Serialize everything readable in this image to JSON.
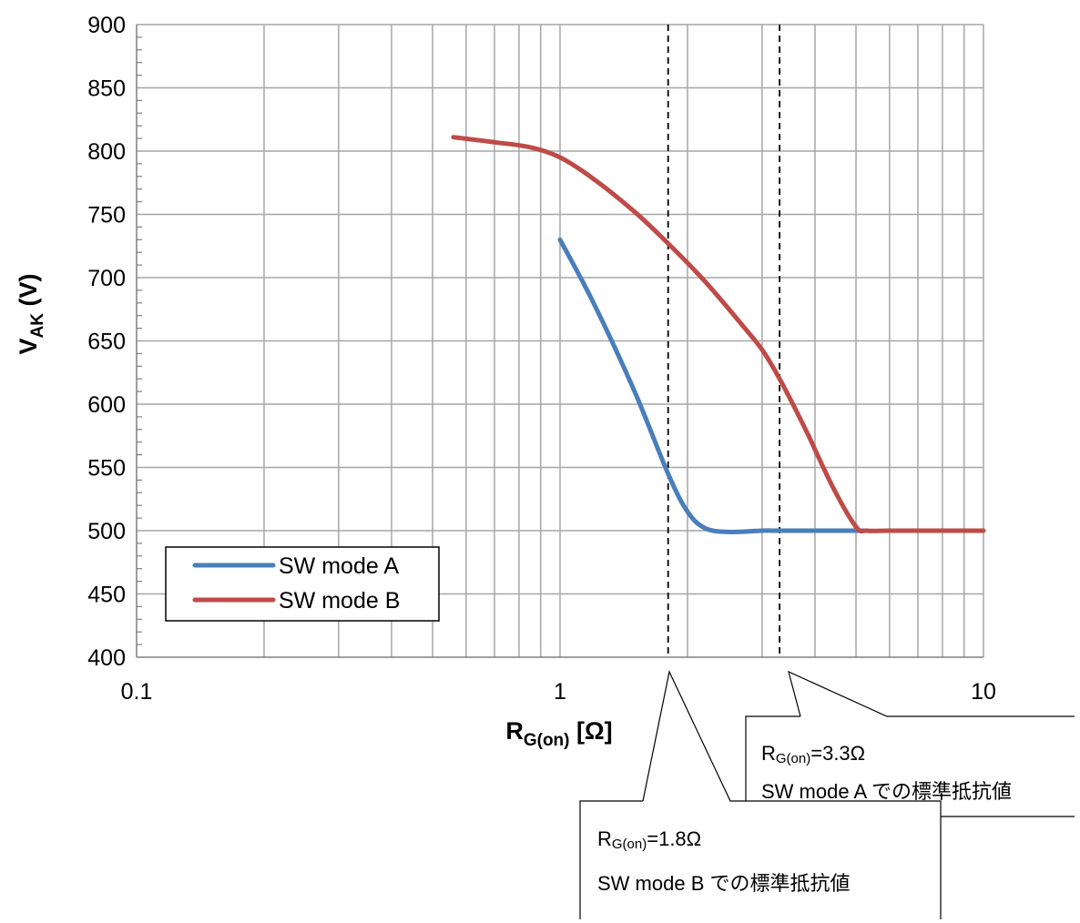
{
  "chart_data": {
    "type": "line",
    "title": "",
    "xlabel": {
      "main": "R",
      "sub": "G(on)",
      "unit": " [Ω]"
    },
    "ylabel": {
      "main": "V",
      "sub": "AK",
      "unit": " (V)"
    },
    "xscale": "log",
    "xlim": [
      0.1,
      10
    ],
    "ylim": [
      400,
      900
    ],
    "x_ticks": [
      "0.1",
      "1",
      "10"
    ],
    "y_ticks": [
      "400",
      "450",
      "500",
      "550",
      "600",
      "650",
      "700",
      "750",
      "800",
      "850",
      "900"
    ],
    "grid": true,
    "legend_position": "bottom-left",
    "series": [
      {
        "name": "SW mode A",
        "color": "#4a7ebb",
        "x": [
          1.0,
          1.2,
          1.5,
          1.8,
          2.0,
          2.2,
          2.5,
          3.0,
          3.3,
          4.0,
          5.0,
          5.3
        ],
        "y": [
          730,
          680,
          610,
          545,
          515,
          502,
          499,
          500,
          500,
          500,
          500,
          500
        ]
      },
      {
        "name": "SW mode B",
        "color": "#be4b48",
        "x": [
          0.56,
          0.7,
          0.85,
          1.0,
          1.2,
          1.5,
          1.8,
          2.2,
          2.7,
          3.0,
          3.3,
          3.8,
          4.4,
          5.0,
          5.3,
          6.0,
          8.0,
          10.0
        ],
        "y": [
          811,
          807,
          803,
          795,
          778,
          752,
          727,
          697,
          662,
          643,
          620,
          580,
          535,
          503,
          500,
          500,
          500,
          500
        ]
      }
    ],
    "reference_lines": [
      {
        "x": 1.8,
        "style": "dashed"
      },
      {
        "x": 3.3,
        "style": "dashed"
      }
    ],
    "annotations": [
      {
        "label_main": "R",
        "label_sub": "G(on)",
        "label_value": "=3.3Ω",
        "text": "SW mode A での標準抵抗値"
      },
      {
        "label_main": "R",
        "label_sub": "G(on)",
        "label_value": "=1.8Ω",
        "text": "SW mode B での標準抵抗値"
      }
    ]
  }
}
